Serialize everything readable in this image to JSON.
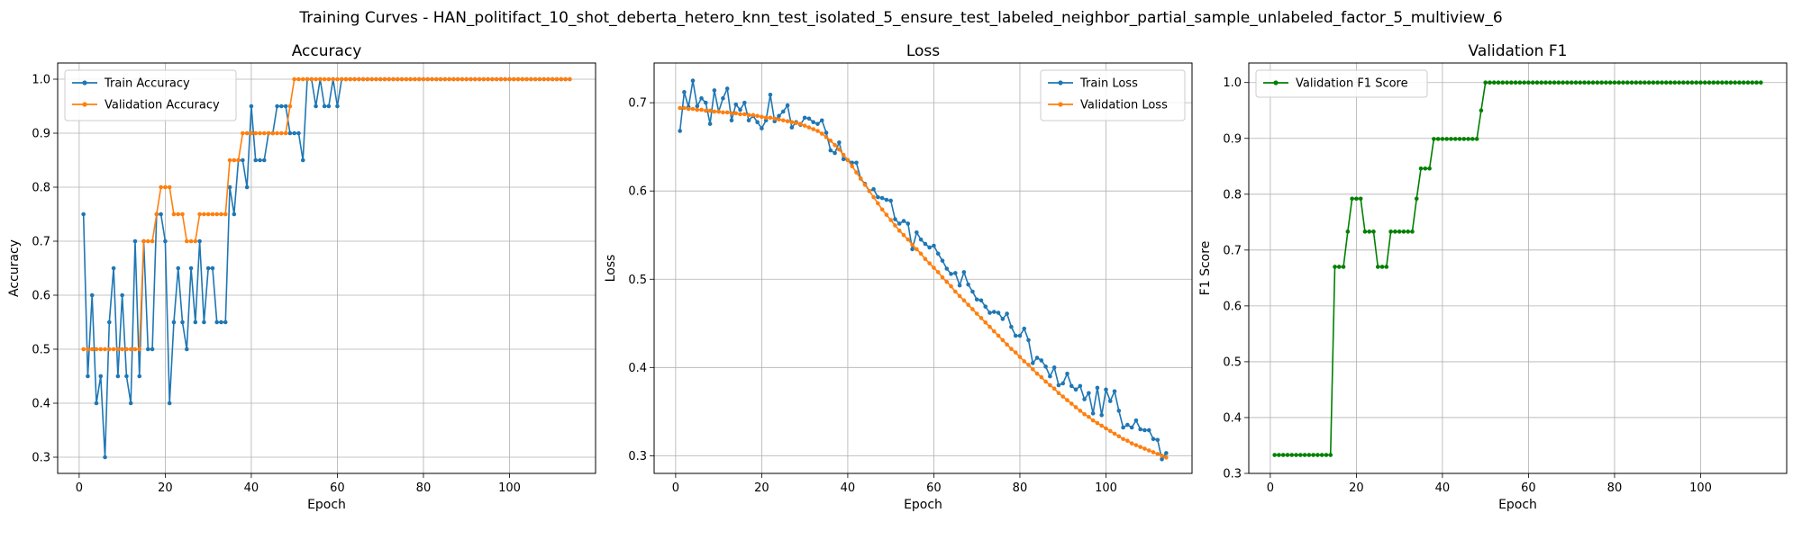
{
  "figure": {
    "suptitle": "Training Curves - HAN_politifact_10_shot_deberta_hetero_knn_test_isolated_5_ensure_test_labeled_neighbor_partial_sample_unlabeled_factor_5_multiview_6"
  },
  "colors": {
    "train": "#1f77b4",
    "validation": "#ff7f0e",
    "f1": "#008000",
    "grid": "#b0b0b0"
  },
  "chart_data": [
    {
      "type": "line",
      "title": "Accuracy",
      "xlabel": "Epoch",
      "ylabel": "Accuracy",
      "xlim": [
        -5,
        120
      ],
      "ylim": [
        0.27,
        1.03
      ],
      "xticks": [
        0,
        20,
        40,
        60,
        80,
        100
      ],
      "yticks": [
        0.3,
        0.4,
        0.5,
        0.6,
        0.7,
        0.8,
        0.9,
        1.0
      ],
      "ytick_labels": [
        "0.3",
        "0.4",
        "0.5",
        "0.6",
        "0.7",
        "0.8",
        "0.9",
        "1.0"
      ],
      "grid": true,
      "legend_position": "upper-left",
      "epochs": 114,
      "series": [
        {
          "name": "Train Accuracy",
          "color": "#1f77b4",
          "values": [
            0.75,
            0.45,
            0.6,
            0.4,
            0.45,
            0.3,
            0.55,
            0.65,
            0.45,
            0.6,
            0.45,
            0.4,
            0.7,
            0.45,
            0.7,
            0.5,
            0.5,
            0.75,
            0.75,
            0.7,
            0.4,
            0.55,
            0.65,
            0.55,
            0.5,
            0.65,
            0.55,
            0.7,
            0.55,
            0.65,
            0.65,
            0.55,
            0.55,
            0.55,
            0.8,
            0.75,
            0.85,
            0.85,
            0.8,
            0.95,
            0.85,
            0.85,
            0.85,
            0.9,
            0.9,
            0.95,
            0.95,
            0.95,
            0.9,
            0.9,
            0.9,
            0.85,
            1.0,
            1.0,
            0.95,
            1.0,
            0.95,
            0.95,
            1.0,
            0.95,
            1.0,
            1.0,
            1.0,
            1.0,
            1.0,
            1.0,
            1.0,
            1.0,
            1.0,
            1.0,
            1.0,
            1.0,
            1.0,
            1.0,
            1.0,
            1.0,
            1.0,
            1.0,
            1.0,
            1.0,
            1.0,
            1.0,
            1.0,
            1.0,
            1.0,
            1.0,
            1.0,
            1.0,
            1.0,
            1.0,
            1.0,
            1.0,
            1.0,
            1.0,
            1.0,
            1.0,
            1.0,
            1.0,
            1.0,
            1.0,
            1.0,
            1.0,
            1.0,
            1.0,
            1.0,
            1.0,
            1.0,
            1.0,
            1.0,
            1.0,
            1.0,
            1.0,
            1.0,
            1.0
          ]
        },
        {
          "name": "Validation Accuracy",
          "color": "#ff7f0e",
          "values": [
            0.5,
            0.5,
            0.5,
            0.5,
            0.5,
            0.5,
            0.5,
            0.5,
            0.5,
            0.5,
            0.5,
            0.5,
            0.5,
            0.5,
            0.7,
            0.7,
            0.7,
            0.75,
            0.8,
            0.8,
            0.8,
            0.75,
            0.75,
            0.75,
            0.7,
            0.7,
            0.7,
            0.75,
            0.75,
            0.75,
            0.75,
            0.75,
            0.75,
            0.75,
            0.85,
            0.85,
            0.85,
            0.9,
            0.9,
            0.9,
            0.9,
            0.9,
            0.9,
            0.9,
            0.9,
            0.9,
            0.9,
            0.9,
            0.95,
            1.0,
            1.0,
            1.0,
            1.0,
            1.0,
            1.0,
            1.0,
            1.0,
            1.0,
            1.0,
            1.0,
            1.0,
            1.0,
            1.0,
            1.0,
            1.0,
            1.0,
            1.0,
            1.0,
            1.0,
            1.0,
            1.0,
            1.0,
            1.0,
            1.0,
            1.0,
            1.0,
            1.0,
            1.0,
            1.0,
            1.0,
            1.0,
            1.0,
            1.0,
            1.0,
            1.0,
            1.0,
            1.0,
            1.0,
            1.0,
            1.0,
            1.0,
            1.0,
            1.0,
            1.0,
            1.0,
            1.0,
            1.0,
            1.0,
            1.0,
            1.0,
            1.0,
            1.0,
            1.0,
            1.0,
            1.0,
            1.0,
            1.0,
            1.0,
            1.0,
            1.0,
            1.0,
            1.0,
            1.0,
            1.0
          ]
        }
      ]
    },
    {
      "type": "line",
      "title": "Loss",
      "xlabel": "Epoch",
      "ylabel": "Loss",
      "xlim": [
        -5,
        120
      ],
      "ylim": [
        0.28,
        0.745
      ],
      "xticks": [
        0,
        20,
        40,
        60,
        80,
        100
      ],
      "yticks": [
        0.3,
        0.4,
        0.5,
        0.6,
        0.7
      ],
      "ytick_labels": [
        "0.3",
        "0.4",
        "0.5",
        "0.6",
        "0.7"
      ],
      "grid": true,
      "legend_position": "upper-right",
      "epochs": 114,
      "series": [
        {
          "name": "Train Loss",
          "color": "#1f77b4",
          "values": [
            0.668,
            0.712,
            0.695,
            0.725,
            0.696,
            0.705,
            0.7,
            0.676,
            0.714,
            0.69,
            0.705,
            0.716,
            0.68,
            0.698,
            0.692,
            0.7,
            0.68,
            0.685,
            0.678,
            0.671,
            0.68,
            0.709,
            0.679,
            0.685,
            0.69,
            0.697,
            0.672,
            0.678,
            0.675,
            0.683,
            0.682,
            0.678,
            0.676,
            0.68,
            0.666,
            0.646,
            0.643,
            0.655,
            0.636,
            0.635,
            0.632,
            0.632,
            0.614,
            0.608,
            0.6,
            0.602,
            0.593,
            0.592,
            0.59,
            0.589,
            0.568,
            0.563,
            0.566,
            0.563,
            0.534,
            0.553,
            0.545,
            0.54,
            0.536,
            0.538,
            0.529,
            0.521,
            0.512,
            0.506,
            0.507,
            0.493,
            0.508,
            0.494,
            0.486,
            0.477,
            0.476,
            0.469,
            0.462,
            0.463,
            0.462,
            0.455,
            0.461,
            0.446,
            0.436,
            0.436,
            0.444,
            0.431,
            0.405,
            0.411,
            0.408,
            0.401,
            0.39,
            0.4,
            0.38,
            0.382,
            0.393,
            0.379,
            0.375,
            0.379,
            0.364,
            0.371,
            0.348,
            0.377,
            0.346,
            0.375,
            0.362,
            0.373,
            0.351,
            0.332,
            0.335,
            0.332,
            0.34,
            0.33,
            0.329,
            0.329,
            0.319,
            0.318,
            0.296,
            0.303
          ]
        },
        {
          "name": "Validation Loss",
          "color": "#ff7f0e",
          "values": [
            0.694,
            0.694,
            0.693,
            0.693,
            0.692,
            0.692,
            0.691,
            0.691,
            0.69,
            0.69,
            0.689,
            0.689,
            0.688,
            0.688,
            0.687,
            0.687,
            0.686,
            0.686,
            0.685,
            0.684,
            0.683,
            0.683,
            0.682,
            0.681,
            0.68,
            0.679,
            0.678,
            0.677,
            0.676,
            0.674,
            0.672,
            0.67,
            0.668,
            0.665,
            0.661,
            0.657,
            0.652,
            0.647,
            0.641,
            0.635,
            0.628,
            0.621,
            0.614,
            0.607,
            0.6,
            0.593,
            0.586,
            0.579,
            0.573,
            0.567,
            0.561,
            0.555,
            0.55,
            0.545,
            0.539,
            0.534,
            0.529,
            0.523,
            0.518,
            0.513,
            0.508,
            0.502,
            0.497,
            0.492,
            0.486,
            0.481,
            0.476,
            0.471,
            0.466,
            0.461,
            0.456,
            0.451,
            0.446,
            0.441,
            0.436,
            0.431,
            0.426,
            0.421,
            0.417,
            0.412,
            0.407,
            0.403,
            0.398,
            0.393,
            0.389,
            0.384,
            0.38,
            0.376,
            0.371,
            0.367,
            0.363,
            0.359,
            0.355,
            0.351,
            0.347,
            0.344,
            0.34,
            0.337,
            0.334,
            0.331,
            0.328,
            0.325,
            0.322,
            0.319,
            0.317,
            0.314,
            0.312,
            0.31,
            0.308,
            0.306,
            0.304,
            0.302,
            0.3,
            0.298
          ]
        }
      ]
    },
    {
      "type": "line",
      "title": "Validation F1",
      "xlabel": "Epoch",
      "ylabel": "F1 Score",
      "xlim": [
        -5,
        120
      ],
      "ylim": [
        0.3,
        1.035
      ],
      "xticks": [
        0,
        20,
        40,
        60,
        80,
        100
      ],
      "yticks": [
        0.3,
        0.4,
        0.5,
        0.6,
        0.7,
        0.8,
        0.9,
        1.0
      ],
      "ytick_labels": [
        "0.3",
        "0.4",
        "0.5",
        "0.6",
        "0.7",
        "0.8",
        "0.9",
        "1.0"
      ],
      "grid": true,
      "legend_position": "upper-left",
      "epochs": 114,
      "series": [
        {
          "name": "Validation F1 Score",
          "color": "#008000",
          "values": [
            0.333,
            0.333,
            0.333,
            0.333,
            0.333,
            0.333,
            0.333,
            0.333,
            0.333,
            0.333,
            0.333,
            0.333,
            0.333,
            0.333,
            0.67,
            0.67,
            0.67,
            0.733,
            0.792,
            0.792,
            0.792,
            0.733,
            0.733,
            0.733,
            0.67,
            0.67,
            0.67,
            0.733,
            0.733,
            0.733,
            0.733,
            0.733,
            0.733,
            0.792,
            0.846,
            0.846,
            0.846,
            0.899,
            0.899,
            0.899,
            0.899,
            0.899,
            0.899,
            0.899,
            0.899,
            0.899,
            0.899,
            0.899,
            0.95,
            1.0,
            1.0,
            1.0,
            1.0,
            1.0,
            1.0,
            1.0,
            1.0,
            1.0,
            1.0,
            1.0,
            1.0,
            1.0,
            1.0,
            1.0,
            1.0,
            1.0,
            1.0,
            1.0,
            1.0,
            1.0,
            1.0,
            1.0,
            1.0,
            1.0,
            1.0,
            1.0,
            1.0,
            1.0,
            1.0,
            1.0,
            1.0,
            1.0,
            1.0,
            1.0,
            1.0,
            1.0,
            1.0,
            1.0,
            1.0,
            1.0,
            1.0,
            1.0,
            1.0,
            1.0,
            1.0,
            1.0,
            1.0,
            1.0,
            1.0,
            1.0,
            1.0,
            1.0,
            1.0,
            1.0,
            1.0,
            1.0,
            1.0,
            1.0,
            1.0,
            1.0,
            1.0,
            1.0,
            1.0,
            1.0
          ]
        }
      ]
    }
  ]
}
